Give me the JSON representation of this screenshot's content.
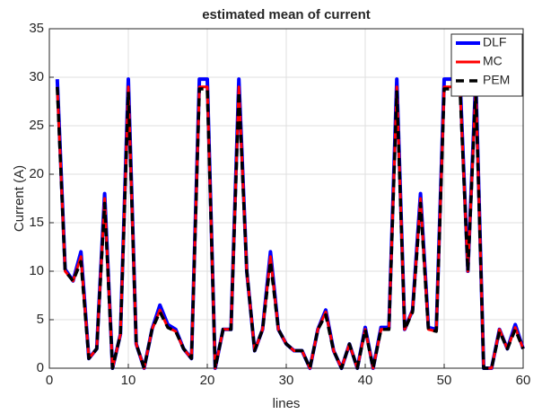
{
  "chart_data": {
    "type": "line",
    "title": "estimated mean of current",
    "xlabel": "lines",
    "ylabel": "Current (A)",
    "x": [
      1,
      2,
      3,
      4,
      5,
      6,
      7,
      8,
      9,
      10,
      11,
      12,
      13,
      14,
      15,
      16,
      17,
      18,
      19,
      20,
      21,
      22,
      23,
      24,
      25,
      26,
      27,
      28,
      29,
      30,
      31,
      32,
      33,
      34,
      35,
      36,
      37,
      38,
      39,
      40,
      41,
      42,
      43,
      44,
      45,
      46,
      47,
      48,
      49,
      50,
      51,
      52,
      53,
      54,
      55,
      56,
      57,
      58,
      59,
      60
    ],
    "series": [
      {
        "name": "DLF",
        "color": "#0000ff",
        "values": [
          29.8,
          10.2,
          9,
          12,
          1,
          2,
          18,
          0,
          3.5,
          29.8,
          2.5,
          0,
          4,
          6.5,
          4.5,
          4,
          2,
          1,
          29.8,
          29.8,
          0,
          4,
          4,
          29.8,
          10,
          1.8,
          4,
          12,
          4,
          2.5,
          1.8,
          1.8,
          0,
          4,
          6,
          1.8,
          0,
          2.5,
          0,
          4.2,
          0,
          4.2,
          4.2,
          29.8,
          4,
          6,
          18,
          4.2,
          4,
          29.8,
          29.8,
          29.8,
          10,
          29.8,
          0,
          0,
          4,
          2,
          4.5,
          2
        ]
      },
      {
        "name": "MC",
        "color": "#ff0000",
        "values": [
          29,
          10,
          9,
          11.5,
          1,
          2,
          17.5,
          0,
          3.5,
          29,
          2.5,
          0,
          4,
          6,
          4.2,
          3.8,
          2,
          1,
          29,
          29,
          0,
          4,
          4,
          29,
          10,
          1.8,
          4,
          11.5,
          4,
          2.5,
          1.8,
          1.8,
          0,
          4,
          5.8,
          1.8,
          0,
          2.5,
          0,
          4,
          0,
          4,
          4,
          29,
          4,
          6,
          17.5,
          4,
          3.8,
          29,
          29,
          29,
          10,
          29,
          0,
          0,
          4,
          2,
          4.2,
          2
        ]
      },
      {
        "name": "PEM",
        "color": "#000000",
        "values": [
          29,
          10,
          9,
          11,
          1,
          2,
          17,
          0,
          3.5,
          28.5,
          2.5,
          0,
          4,
          5.8,
          4.2,
          3.8,
          2,
          1,
          28.8,
          28.8,
          0,
          4,
          4,
          28.5,
          10,
          1.8,
          4,
          11,
          4,
          2.5,
          1.8,
          1.8,
          0,
          4,
          5.5,
          1.8,
          0,
          2.5,
          0,
          4,
          0,
          4,
          4,
          28.5,
          4,
          5.8,
          17,
          4,
          3.8,
          28.8,
          28.8,
          28.8,
          10,
          28.8,
          0,
          0,
          3.8,
          2,
          4,
          2
        ]
      }
    ],
    "xlim": [
      0,
      60
    ],
    "xticks": [
      0,
      10,
      20,
      30,
      40,
      50,
      60
    ],
    "ylim": [
      0,
      35
    ],
    "yticks": [
      0,
      5,
      10,
      15,
      20,
      25,
      30,
      35
    ],
    "grid": true,
    "legend": "upper right"
  }
}
